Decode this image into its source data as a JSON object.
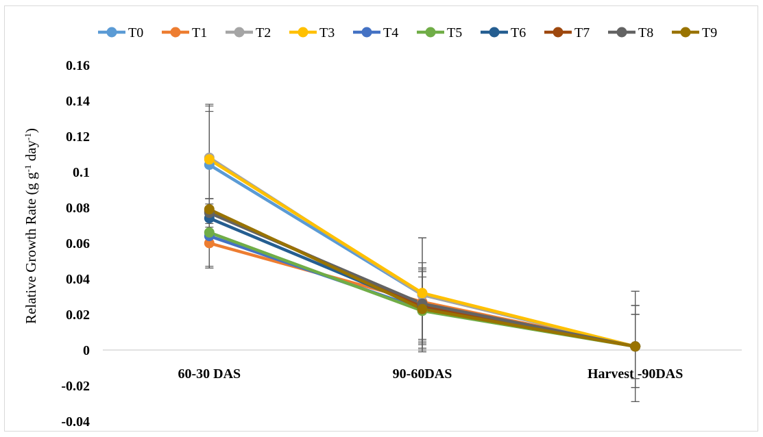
{
  "chart_data": {
    "type": "line",
    "title": "",
    "xlabel": "",
    "ylabel": {
      "prefix": "Relative Growth Rate (g g",
      "sup1": "-1",
      "middle": " day",
      "sup2": "-1",
      "suffix": ")"
    },
    "categories": [
      "60-30 DAS",
      "90-60DAS",
      "Harvest -90DAS"
    ],
    "ylim": [
      -0.04,
      0.16
    ],
    "yticks": [
      -0.04,
      -0.02,
      0,
      0.02,
      0.04,
      0.06,
      0.08,
      0.1,
      0.12,
      0.14,
      0.16
    ],
    "ytick_labels": [
      "-0.04",
      "-0.02",
      "0",
      "0.02",
      "0.04",
      "0.06",
      "0.08",
      "0.1",
      "0.12",
      "0.14",
      "0.16"
    ],
    "grid": false,
    "legend_position": "top",
    "series": [
      {
        "name": "T0",
        "color": "#5b9bd5",
        "values": [
          0.104,
          0.031,
          0.002
        ],
        "err": [
          0.03,
          0.032,
          0.018
        ]
      },
      {
        "name": "T1",
        "color": "#ed7d31",
        "values": [
          0.06,
          0.027,
          0.002
        ],
        "err": [
          0.014,
          0.022,
          0.018
        ]
      },
      {
        "name": "T2",
        "color": "#a5a5a5",
        "values": [
          0.108,
          0.031,
          0.002
        ],
        "err": [
          0.03,
          0.032,
          0.023
        ]
      },
      {
        "name": "T3",
        "color": "#ffc000",
        "values": [
          0.107,
          0.032,
          0.002
        ],
        "err": [
          0.03,
          0.031,
          0.031
        ]
      },
      {
        "name": "T4",
        "color": "#4472c4",
        "values": [
          0.064,
          0.023,
          0.002
        ],
        "err": [
          0.018,
          0.022,
          0.018
        ]
      },
      {
        "name": "T5",
        "color": "#70ad47",
        "values": [
          0.066,
          0.022,
          0.002
        ],
        "err": [
          0.019,
          0.019,
          0.018
        ]
      },
      {
        "name": "T6",
        "color": "#255e91",
        "values": [
          0.074,
          0.024,
          0.002
        ],
        "err": [
          0.011,
          0.02,
          0.023
        ]
      },
      {
        "name": "T7",
        "color": "#9e480e",
        "values": [
          0.078,
          0.025,
          0.002
        ],
        "err": [
          0.007,
          0.021,
          0.023
        ]
      },
      {
        "name": "T8",
        "color": "#636363",
        "values": [
          0.077,
          0.026,
          0.002
        ],
        "err": [
          0.008,
          0.02,
          0.031
        ]
      },
      {
        "name": "T9",
        "color": "#997300",
        "values": [
          0.079,
          0.023,
          0.002
        ],
        "err": [
          0.006,
          0.023,
          0.023
        ]
      }
    ]
  }
}
